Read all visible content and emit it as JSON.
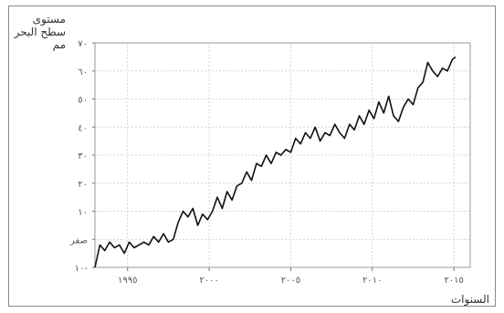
{
  "chart_data": {
    "type": "line",
    "ylabel_line1": "مستوى",
    "ylabel_line2": "سطح البحر مم",
    "xlabel": "السنوات",
    "xlim": [
      1993,
      2016
    ],
    "ylim": [
      -10,
      70
    ],
    "y_ticks": [
      {
        "value": 70,
        "label": "٧٠"
      },
      {
        "value": 60,
        "label": "٦٠"
      },
      {
        "value": 50,
        "label": "٥٠"
      },
      {
        "value": 40,
        "label": "٤٠"
      },
      {
        "value": 30,
        "label": "٣٠"
      },
      {
        "value": 20,
        "label": "٢٠"
      },
      {
        "value": 10,
        "label": "١٠"
      },
      {
        "value": 0,
        "label": "صفر"
      },
      {
        "value": -10,
        "label": "١٠-"
      }
    ],
    "x_ticks": [
      {
        "value": 1995,
        "label": "١٩٩٥"
      },
      {
        "value": 2000,
        "label": "٢٠٠٠"
      },
      {
        "value": 2005,
        "label": "٢٠٠٥"
      },
      {
        "value": 2010,
        "label": "٢٠١٠"
      },
      {
        "value": 2015,
        "label": "٢٠١٥"
      }
    ],
    "grid": true,
    "series": [
      {
        "color": "#111111",
        "x": [
          1993.0,
          1993.3,
          1993.6,
          1993.9,
          1994.2,
          1994.5,
          1994.8,
          1995.1,
          1995.4,
          1995.7,
          1996.0,
          1996.3,
          1996.6,
          1996.9,
          1997.2,
          1997.5,
          1997.8,
          1998.1,
          1998.4,
          1998.7,
          1999.0,
          1999.3,
          1999.6,
          1999.9,
          2000.2,
          2000.5,
          2000.8,
          2001.1,
          2001.4,
          2001.7,
          2002.0,
          2002.3,
          2002.6,
          2002.9,
          2003.2,
          2003.5,
          2003.8,
          2004.1,
          2004.4,
          2004.7,
          2005.0,
          2005.3,
          2005.6,
          2005.9,
          2006.2,
          2006.5,
          2006.8,
          2007.1,
          2007.4,
          2007.7,
          2008.0,
          2008.3,
          2008.6,
          2008.9,
          2009.2,
          2009.5,
          2009.8,
          2010.1,
          2010.4,
          2010.7,
          2011.0,
          2011.3,
          2011.6,
          2011.9,
          2012.2,
          2012.5,
          2012.8,
          2013.1,
          2013.4,
          2013.7,
          2014.0,
          2014.3,
          2014.6,
          2014.9,
          2015.1
        ],
        "y": [
          -10,
          -2,
          -4,
          -1,
          -3,
          -2,
          -5,
          -1,
          -3,
          -2,
          -1,
          -2,
          1,
          -1,
          2,
          -1,
          0,
          6,
          10,
          8,
          11,
          5,
          9,
          7,
          10,
          15,
          11,
          17,
          14,
          19,
          20,
          24,
          21,
          27,
          26,
          30,
          27,
          31,
          30,
          32,
          31,
          36,
          34,
          38,
          36,
          40,
          35,
          38,
          37,
          41,
          38,
          36,
          41,
          39,
          44,
          41,
          46,
          43,
          49,
          45,
          51,
          44,
          42,
          47,
          50,
          48,
          54,
          56,
          63,
          60,
          58,
          61,
          60,
          64,
          65
        ]
      }
    ]
  }
}
